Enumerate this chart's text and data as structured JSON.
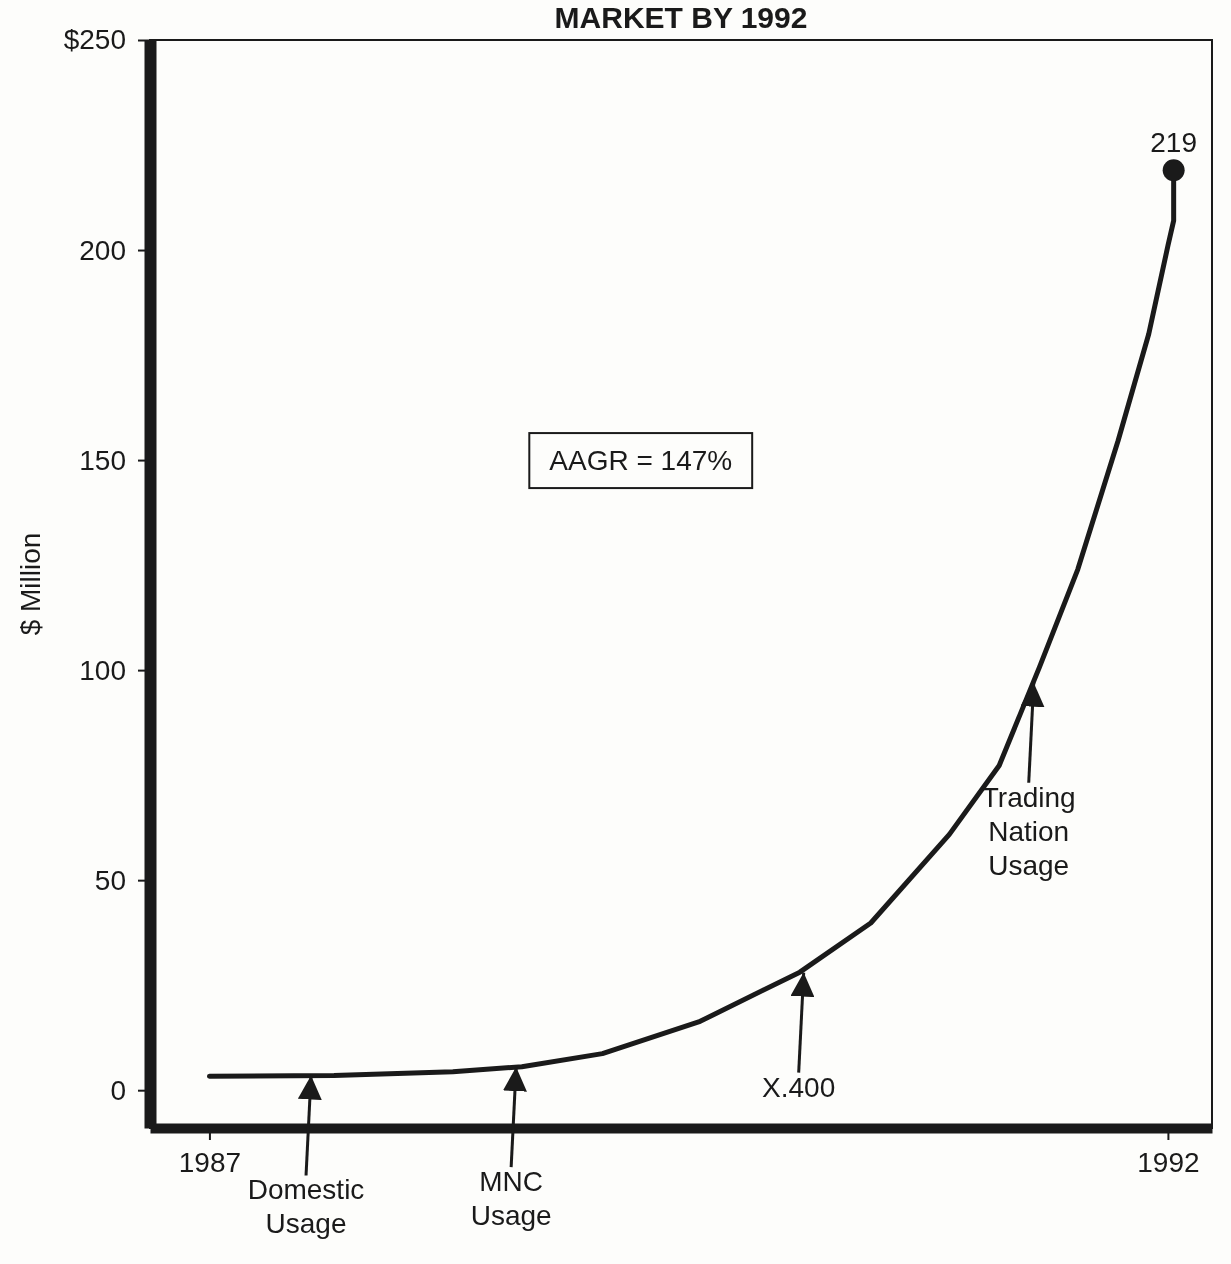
{
  "chart_data": {
    "type": "line",
    "title": "MARKET BY 1992",
    "ylabel": "$ Million",
    "xlim": [
      1986.69,
      1992.23
    ],
    "ylim": [
      -9,
      250
    ],
    "xticks": [
      1987,
      1992
    ],
    "yticks": [
      0,
      50,
      100,
      150,
      200,
      {
        "value": 250,
        "label": "$250"
      }
    ],
    "grid": false,
    "line_style": "solid",
    "series": [
      {
        "color": "#1a1a1a",
        "x": [
          1987,
          1987.65,
          1988.27,
          1988.63,
          1989.05,
          1989.56,
          1990.08,
          1990.45,
          1990.86,
          1991.12,
          1991.33,
          1991.53,
          1991.74,
          1991.9,
          1992,
          1992.03,
          1992.03
        ],
        "values": [
          3.3,
          3.5,
          4.4,
          5.6,
          8.7,
          16.4,
          28.1,
          39.8,
          60.9,
          77.3,
          100.7,
          124,
          154.6,
          180,
          201,
          207,
          219
        ]
      },
      {
        "type": "scatter",
        "marker": "circle",
        "color": "#1a1a1a",
        "x": [
          1992.03
        ],
        "values": [
          219
        ],
        "value_labels": [
          "219"
        ]
      }
    ],
    "annotations": [
      {
        "text": "Domestic Usage",
        "x": 1987.53,
        "y": 3.5
      },
      {
        "text": "MNC Usage",
        "x": 1988.6,
        "y": 5.5
      },
      {
        "text": "X.400",
        "x": 1990.1,
        "y": 28
      },
      {
        "text": "Trading Nation Usage",
        "x": 1991.3,
        "y": 97
      },
      "AAGR = 147%"
    ]
  }
}
